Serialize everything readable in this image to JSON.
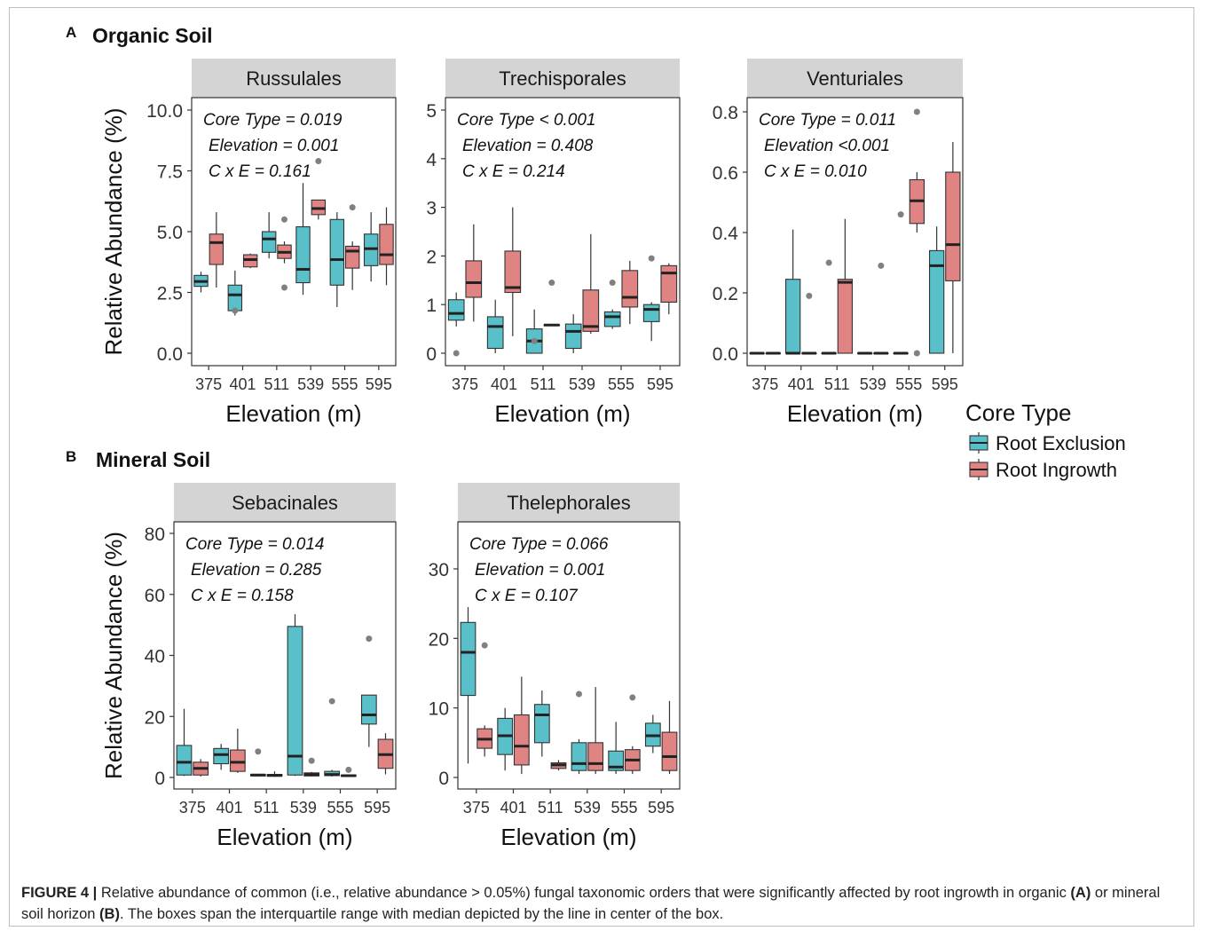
{
  "figure": {
    "panels": [
      {
        "letter": "A",
        "title": "Organic Soil"
      },
      {
        "letter": "B",
        "title": "Mineral Soil"
      }
    ],
    "legend": {
      "title": "Core Type",
      "items": [
        {
          "label": "Root Exclusion",
          "color": "#59BFC8"
        },
        {
          "label": "Root Ingrowth",
          "color": "#E08383"
        }
      ]
    },
    "caption": {
      "label": "FIGURE 4 |",
      "text1": " Relative abundance of common (i.e., relative abundance > 0.05%) fungal taxonomic orders that were significantly affected by root ingrowth in organic ",
      "ref_a": "(A)",
      "text2": " or mineral soil horizon ",
      "ref_b": "(B)",
      "text3": ". The boxes span the interquartile range with median depicted by the line in center of the box."
    }
  },
  "colors": {
    "exclusion": "#59BFC8",
    "ingrowth": "#E08383",
    "strip": "#D4D4D4",
    "outlier": "#808080"
  },
  "chart_data": [
    {
      "type": "boxplot",
      "panel": "A",
      "title": "Russulales",
      "xlabel": "Elevation (m)",
      "ylabel": "Relative Abundance (%)",
      "categories": [
        "375",
        "401",
        "511",
        "539",
        "555",
        "595"
      ],
      "ylim": [
        0,
        10
      ],
      "yticks": [
        "0.0",
        "2.5",
        "5.0",
        "7.5",
        "10.0"
      ],
      "ytick_values": [
        0,
        2.5,
        5,
        7.5,
        10
      ],
      "stats": [
        "Core Type = 0.019",
        "Elevation = 0.001",
        "C x E = 0.161"
      ],
      "series": [
        {
          "name": "Root Exclusion",
          "boxes": [
            {
              "min": 2.5,
              "q1": 2.75,
              "median": 2.95,
              "q3": 3.2,
              "max": 3.35,
              "outliers": []
            },
            {
              "min": 1.55,
              "q1": 1.75,
              "median": 2.4,
              "q3": 2.8,
              "max": 3.4,
              "outliers": [
                1.75
              ]
            },
            {
              "min": 3.9,
              "q1": 4.15,
              "median": 4.7,
              "q3": 5.0,
              "max": 5.8,
              "outliers": []
            },
            {
              "min": 2.4,
              "q1": 2.9,
              "median": 3.45,
              "q3": 5.2,
              "max": 7.0,
              "outliers": []
            },
            {
              "min": 1.9,
              "q1": 2.8,
              "median": 3.85,
              "q3": 5.5,
              "max": 5.8,
              "outliers": []
            },
            {
              "min": 2.95,
              "q1": 3.6,
              "median": 4.3,
              "q3": 4.9,
              "max": 5.8,
              "outliers": []
            }
          ]
        },
        {
          "name": "Root Ingrowth",
          "boxes": [
            {
              "min": 2.7,
              "q1": 3.65,
              "median": 4.55,
              "q3": 4.9,
              "max": 5.8,
              "outliers": []
            },
            {
              "min": 3.5,
              "q1": 3.55,
              "median": 3.85,
              "q3": 4.05,
              "max": 4.1,
              "outliers": []
            },
            {
              "min": 3.7,
              "q1": 3.9,
              "median": 4.15,
              "q3": 4.45,
              "max": 4.6,
              "outliers": [
                5.5,
                2.7
              ]
            },
            {
              "min": 5.5,
              "q1": 5.7,
              "median": 5.95,
              "q3": 6.3,
              "max": 6.3,
              "outliers": [
                7.9
              ]
            },
            {
              "min": 2.6,
              "q1": 3.5,
              "median": 4.2,
              "q3": 4.4,
              "max": 4.6,
              "outliers": [
                6.0
              ]
            },
            {
              "min": 2.8,
              "q1": 3.65,
              "median": 4.05,
              "q3": 5.3,
              "max": 6.0,
              "outliers": []
            }
          ]
        }
      ]
    },
    {
      "type": "boxplot",
      "panel": "A",
      "title": "Trechisporales",
      "xlabel": "Elevation (m)",
      "ylabel": "",
      "categories": [
        "375",
        "401",
        "511",
        "539",
        "555",
        "595"
      ],
      "ylim": [
        0,
        5
      ],
      "yticks": [
        "0",
        "1",
        "2",
        "3",
        "4",
        "5"
      ],
      "ytick_values": [
        0,
        1,
        2,
        3,
        4,
        5
      ],
      "stats": [
        "Core Type < 0.001",
        "Elevation = 0.408",
        "C x E = 0.214"
      ],
      "series": [
        {
          "name": "Root Exclusion",
          "boxes": [
            {
              "min": 0.55,
              "q1": 0.68,
              "median": 0.82,
              "q3": 1.1,
              "max": 1.25,
              "outliers": [
                0.0
              ]
            },
            {
              "min": 0.0,
              "q1": 0.1,
              "median": 0.55,
              "q3": 0.75,
              "max": 1.1,
              "outliers": []
            },
            {
              "min": 0.0,
              "q1": 0.0,
              "median": 0.25,
              "q3": 0.5,
              "max": 0.9,
              "outliers": [
                0.25
              ]
            },
            {
              "min": 0.0,
              "q1": 0.1,
              "median": 0.45,
              "q3": 0.6,
              "max": 0.8,
              "outliers": []
            },
            {
              "min": 0.5,
              "q1": 0.55,
              "median": 0.75,
              "q3": 0.85,
              "max": 0.9,
              "outliers": [
                1.45
              ]
            },
            {
              "min": 0.25,
              "q1": 0.65,
              "median": 0.9,
              "q3": 1.0,
              "max": 1.05,
              "outliers": [
                1.95
              ]
            }
          ]
        },
        {
          "name": "Root Ingrowth",
          "boxes": [
            {
              "min": 0.65,
              "q1": 1.15,
              "median": 1.45,
              "q3": 1.9,
              "max": 2.65,
              "outliers": []
            },
            {
              "min": 0.35,
              "q1": 1.25,
              "median": 1.35,
              "q3": 2.1,
              "max": 3.0,
              "outliers": []
            },
            {
              "min": 0.58,
              "q1": 0.58,
              "median": 0.58,
              "q3": 0.58,
              "max": 0.58,
              "outliers": [
                1.45
              ]
            },
            {
              "min": 0.4,
              "q1": 0.45,
              "median": 0.55,
              "q3": 1.3,
              "max": 2.45,
              "outliers": []
            },
            {
              "min": 0.6,
              "q1": 0.95,
              "median": 1.15,
              "q3": 1.7,
              "max": 1.9,
              "outliers": []
            },
            {
              "min": 0.8,
              "q1": 1.05,
              "median": 1.65,
              "q3": 1.8,
              "max": 1.85,
              "outliers": []
            }
          ]
        }
      ]
    },
    {
      "type": "boxplot",
      "panel": "A",
      "title": "Venturiales",
      "xlabel": "Elevation (m)",
      "ylabel": "",
      "categories": [
        "375",
        "401",
        "511",
        "539",
        "555",
        "595"
      ],
      "ylim": [
        0,
        0.8
      ],
      "yticks": [
        "0.0",
        "0.2",
        "0.4",
        "0.6",
        "0.8"
      ],
      "ytick_values": [
        0,
        0.2,
        0.4,
        0.6,
        0.8
      ],
      "stats": [
        "Core Type = 0.011",
        "Elevation <0.001",
        "C x E = 0.010"
      ],
      "series": [
        {
          "name": "Root Exclusion",
          "boxes": [
            {
              "min": 0.0,
              "q1": 0.0,
              "median": 0.0,
              "q3": 0.0,
              "max": 0.0,
              "outliers": []
            },
            {
              "min": 0.0,
              "q1": 0.0,
              "median": 0.0,
              "q3": 0.245,
              "max": 0.41,
              "outliers": []
            },
            {
              "min": 0.0,
              "q1": 0.0,
              "median": 0.0,
              "q3": 0.0,
              "max": 0.0,
              "outliers": [
                0.3
              ]
            },
            {
              "min": 0.0,
              "q1": 0.0,
              "median": 0.0,
              "q3": 0.0,
              "max": 0.0,
              "outliers": []
            },
            {
              "min": 0.0,
              "q1": 0.0,
              "median": 0.0,
              "q3": 0.0,
              "max": 0.0,
              "outliers": [
                0.46
              ]
            },
            {
              "min": 0.0,
              "q1": 0.0,
              "median": 0.29,
              "q3": 0.34,
              "max": 0.42,
              "outliers": []
            }
          ]
        },
        {
          "name": "Root Ingrowth",
          "boxes": [
            {
              "min": 0.0,
              "q1": 0.0,
              "median": 0.0,
              "q3": 0.0,
              "max": 0.0,
              "outliers": []
            },
            {
              "min": 0.0,
              "q1": 0.0,
              "median": 0.0,
              "q3": 0.0,
              "max": 0.0,
              "outliers": [
                0.19
              ]
            },
            {
              "min": 0.0,
              "q1": 0.0,
              "median": 0.235,
              "q3": 0.245,
              "max": 0.445,
              "outliers": []
            },
            {
              "min": 0.0,
              "q1": 0.0,
              "median": 0.0,
              "q3": 0.0,
              "max": 0.0,
              "outliers": [
                0.29
              ]
            },
            {
              "min": 0.4,
              "q1": 0.43,
              "median": 0.505,
              "q3": 0.575,
              "max": 0.6,
              "outliers": [
                0.8,
                0.0
              ]
            },
            {
              "min": 0.0,
              "q1": 0.24,
              "median": 0.36,
              "q3": 0.6,
              "max": 0.7,
              "outliers": []
            }
          ]
        }
      ]
    },
    {
      "type": "boxplot",
      "panel": "B",
      "title": "Sebacinales",
      "xlabel": "Elevation (m)",
      "ylabel": "Relative Abundance (%)",
      "categories": [
        "375",
        "401",
        "511",
        "539",
        "555",
        "595"
      ],
      "ylim": [
        0,
        80
      ],
      "yticks": [
        "0",
        "20",
        "40",
        "60",
        "80"
      ],
      "ytick_values": [
        0,
        20,
        40,
        60,
        80
      ],
      "stats": [
        "Core Type = 0.014",
        "Elevation = 0.285",
        "C x E = 0.158"
      ],
      "series": [
        {
          "name": "Root Exclusion",
          "boxes": [
            {
              "min": 0.5,
              "q1": 0.8,
              "median": 5.0,
              "q3": 10.5,
              "max": 22.5,
              "outliers": []
            },
            {
              "min": 2.5,
              "q1": 4.5,
              "median": 7.5,
              "q3": 9.5,
              "max": 11.0,
              "outliers": []
            },
            {
              "min": 0.3,
              "q1": 0.5,
              "median": 0.8,
              "q3": 1.0,
              "max": 1.2,
              "outliers": [
                8.5
              ]
            },
            {
              "min": 0.5,
              "q1": 0.8,
              "median": 7.0,
              "q3": 49.5,
              "max": 53.5,
              "outliers": []
            },
            {
              "min": 0.3,
              "q1": 0.6,
              "median": 1.0,
              "q3": 2.0,
              "max": 2.5,
              "outliers": [
                25.0
              ]
            },
            {
              "min": 10.0,
              "q1": 17.5,
              "median": 20.5,
              "q3": 27.0,
              "max": 27.0,
              "outliers": [
                45.5
              ]
            }
          ]
        },
        {
          "name": "Root Ingrowth",
          "boxes": [
            {
              "min": 0.3,
              "q1": 0.8,
              "median": 3.0,
              "q3": 5.0,
              "max": 6.0,
              "outliers": []
            },
            {
              "min": 1.5,
              "q1": 2.0,
              "median": 5.0,
              "q3": 9.0,
              "max": 16.0,
              "outliers": []
            },
            {
              "min": 0.2,
              "q1": 0.4,
              "median": 0.7,
              "q3": 1.0,
              "max": 2.0,
              "outliers": []
            },
            {
              "min": 0.3,
              "q1": 0.5,
              "median": 1.0,
              "q3": 1.5,
              "max": 1.8,
              "outliers": [
                5.5
              ]
            },
            {
              "min": 0.2,
              "q1": 0.4,
              "median": 0.6,
              "q3": 0.8,
              "max": 1.0,
              "outliers": [
                2.5
              ]
            },
            {
              "min": 1.0,
              "q1": 3.0,
              "median": 7.5,
              "q3": 12.5,
              "max": 14.5,
              "outliers": []
            }
          ]
        }
      ]
    },
    {
      "type": "boxplot",
      "panel": "B",
      "title": "Thelephorales",
      "xlabel": "Elevation (m)",
      "ylabel": "",
      "categories": [
        "375",
        "401",
        "511",
        "539",
        "555",
        "595"
      ],
      "ylim": [
        0,
        37
      ],
      "yticks": [
        "0",
        "10",
        "20",
        "30"
      ],
      "ytick_values": [
        0,
        10,
        20,
        30
      ],
      "stats": [
        "Core Type = 0.066",
        "Elevation = 0.001",
        "C x E = 0.107"
      ],
      "series": [
        {
          "name": "Root Exclusion",
          "boxes": [
            {
              "min": 2.0,
              "q1": 11.8,
              "median": 18.0,
              "q3": 22.3,
              "max": 24.5,
              "outliers": []
            },
            {
              "min": 1.0,
              "q1": 3.3,
              "median": 6.0,
              "q3": 8.5,
              "max": 10.0,
              "outliers": []
            },
            {
              "min": 3.0,
              "q1": 5.0,
              "median": 9.0,
              "q3": 10.5,
              "max": 12.5,
              "outliers": []
            },
            {
              "min": 0.5,
              "q1": 1.0,
              "median": 2.0,
              "q3": 5.0,
              "max": 5.5,
              "outliers": [
                12.0
              ]
            },
            {
              "min": 0.5,
              "q1": 1.0,
              "median": 1.5,
              "q3": 3.8,
              "max": 8.0,
              "outliers": []
            },
            {
              "min": 3.5,
              "q1": 4.5,
              "median": 6.0,
              "q3": 7.8,
              "max": 9.0,
              "outliers": []
            }
          ]
        },
        {
          "name": "Root Ingrowth",
          "boxes": [
            {
              "min": 3.0,
              "q1": 4.2,
              "median": 5.5,
              "q3": 7.0,
              "max": 7.5,
              "outliers": [
                19.0
              ]
            },
            {
              "min": 0.5,
              "q1": 1.8,
              "median": 4.5,
              "q3": 9.0,
              "max": 14.5,
              "outliers": []
            },
            {
              "min": 1.0,
              "q1": 1.3,
              "median": 1.8,
              "q3": 2.1,
              "max": 2.5,
              "outliers": []
            },
            {
              "min": 0.5,
              "q1": 1.0,
              "median": 2.0,
              "q3": 5.0,
              "max": 13.0,
              "outliers": []
            },
            {
              "min": 0.5,
              "q1": 1.0,
              "median": 2.5,
              "q3": 4.0,
              "max": 4.5,
              "outliers": [
                11.5
              ]
            },
            {
              "min": 0.5,
              "q1": 1.0,
              "median": 3.0,
              "q3": 6.5,
              "max": 11.0,
              "outliers": []
            }
          ]
        }
      ]
    }
  ]
}
